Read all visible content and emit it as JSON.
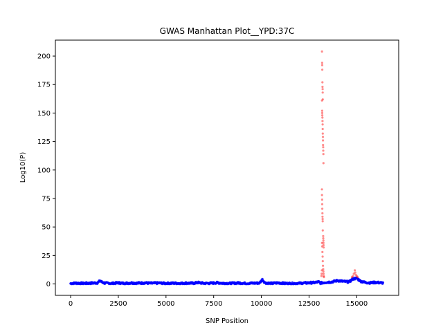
{
  "chart_data": {
    "type": "scatter",
    "title": "GWAS Manhattan Plot__YPD:37C",
    "xlabel": "SNP Position",
    "ylabel": "Log10(P)",
    "xlim": [
      -800,
      17200
    ],
    "ylim": [
      -10,
      214
    ],
    "xticks": [
      0,
      2500,
      5000,
      7500,
      10000,
      12500,
      15000
    ],
    "yticks": [
      0,
      25,
      50,
      75,
      100,
      125,
      150,
      175,
      200
    ],
    "grid": false,
    "significance_threshold": 5,
    "colors": {
      "significant": "#ff0000",
      "background": "#0000ff"
    },
    "background_segments": [
      [
        0,
        0.4
      ],
      [
        300,
        0.8
      ],
      [
        600,
        0.5
      ],
      [
        1000,
        0.7
      ],
      [
        1400,
        1.0
      ],
      [
        1550,
        2.8
      ],
      [
        1650,
        1.6
      ],
      [
        1800,
        0.7
      ],
      [
        2200,
        0.5
      ],
      [
        2500,
        1.0
      ],
      [
        2800,
        0.5
      ],
      [
        3200,
        1.0
      ],
      [
        3500,
        0.7
      ],
      [
        3800,
        1.0
      ],
      [
        4200,
        0.6
      ],
      [
        4600,
        0.8
      ],
      [
        5000,
        0.5
      ],
      [
        5400,
        0.7
      ],
      [
        5800,
        0.5
      ],
      [
        6000,
        0.8
      ],
      [
        6400,
        0.6
      ],
      [
        6700,
        1.2
      ],
      [
        7000,
        0.5
      ],
      [
        7400,
        0.7
      ],
      [
        7700,
        1.1
      ],
      [
        8000,
        0.6
      ],
      [
        8400,
        0.5
      ],
      [
        8800,
        0.9
      ],
      [
        9200,
        0.5
      ],
      [
        9600,
        0.7
      ],
      [
        9900,
        0.8
      ],
      [
        10050,
        3.8
      ],
      [
        10200,
        1.0
      ],
      [
        10500,
        0.4
      ],
      [
        10900,
        1.0
      ],
      [
        11200,
        0.5
      ],
      [
        11600,
        0.4
      ],
      [
        12000,
        0.6
      ],
      [
        12400,
        0.9
      ],
      [
        12800,
        1.2
      ],
      [
        13000,
        1.8
      ],
      [
        13100,
        0.8
      ],
      [
        13400,
        1.5
      ],
      [
        13700,
        1.8
      ],
      [
        14000,
        3.0
      ],
      [
        14300,
        2.2
      ],
      [
        14600,
        1.8
      ],
      [
        14800,
        4.5
      ],
      [
        15000,
        5.0
      ],
      [
        15200,
        2.5
      ],
      [
        15400,
        1.5
      ],
      [
        15700,
        1.0
      ],
      [
        16000,
        1.4
      ],
      [
        16200,
        1.1
      ],
      [
        16400,
        0.8
      ]
    ],
    "significant_points": [
      {
        "x": 13180,
        "y": 204
      },
      {
        "x": 13185,
        "y": 194
      },
      {
        "x": 13190,
        "y": 192
      },
      {
        "x": 13195,
        "y": 188
      },
      {
        "x": 13200,
        "y": 177
      },
      {
        "x": 13205,
        "y": 173
      },
      {
        "x": 13210,
        "y": 171
      },
      {
        "x": 13215,
        "y": 168
      },
      {
        "x": 13220,
        "y": 162
      },
      {
        "x": 13180,
        "y": 161
      },
      {
        "x": 13185,
        "y": 152
      },
      {
        "x": 13190,
        "y": 150
      },
      {
        "x": 13195,
        "y": 148
      },
      {
        "x": 13200,
        "y": 146
      },
      {
        "x": 13205,
        "y": 143
      },
      {
        "x": 13210,
        "y": 140
      },
      {
        "x": 13215,
        "y": 136
      },
      {
        "x": 13220,
        "y": 132
      },
      {
        "x": 13225,
        "y": 129
      },
      {
        "x": 13230,
        "y": 126
      },
      {
        "x": 13235,
        "y": 122
      },
      {
        "x": 13240,
        "y": 120
      },
      {
        "x": 13245,
        "y": 117
      },
      {
        "x": 13250,
        "y": 114
      },
      {
        "x": 13255,
        "y": 106
      },
      {
        "x": 13175,
        "y": 83
      },
      {
        "x": 13180,
        "y": 78
      },
      {
        "x": 13185,
        "y": 74
      },
      {
        "x": 13190,
        "y": 70
      },
      {
        "x": 13195,
        "y": 66
      },
      {
        "x": 13200,
        "y": 62
      },
      {
        "x": 13205,
        "y": 59
      },
      {
        "x": 13210,
        "y": 57
      },
      {
        "x": 13215,
        "y": 55
      },
      {
        "x": 13220,
        "y": 47
      },
      {
        "x": 13240,
        "y": 42
      },
      {
        "x": 13245,
        "y": 40
      },
      {
        "x": 13250,
        "y": 38
      },
      {
        "x": 13255,
        "y": 36
      },
      {
        "x": 13260,
        "y": 34
      },
      {
        "x": 13265,
        "y": 32
      },
      {
        "x": 13180,
        "y": 36
      },
      {
        "x": 13190,
        "y": 33
      },
      {
        "x": 13200,
        "y": 28
      },
      {
        "x": 13210,
        "y": 24
      },
      {
        "x": 13220,
        "y": 20
      },
      {
        "x": 13230,
        "y": 16
      },
      {
        "x": 13240,
        "y": 13
      },
      {
        "x": 13250,
        "y": 11
      },
      {
        "x": 13260,
        "y": 9
      },
      {
        "x": 13270,
        "y": 7
      },
      {
        "x": 13280,
        "y": 6
      },
      {
        "x": 13170,
        "y": 12
      },
      {
        "x": 13160,
        "y": 9
      },
      {
        "x": 13150,
        "y": 7
      },
      {
        "x": 14800,
        "y": 7
      },
      {
        "x": 14850,
        "y": 9
      },
      {
        "x": 14900,
        "y": 12
      },
      {
        "x": 14920,
        "y": 10
      },
      {
        "x": 14950,
        "y": 8
      },
      {
        "x": 15000,
        "y": 7
      },
      {
        "x": 15050,
        "y": 6
      },
      {
        "x": 14750,
        "y": 6
      }
    ]
  }
}
